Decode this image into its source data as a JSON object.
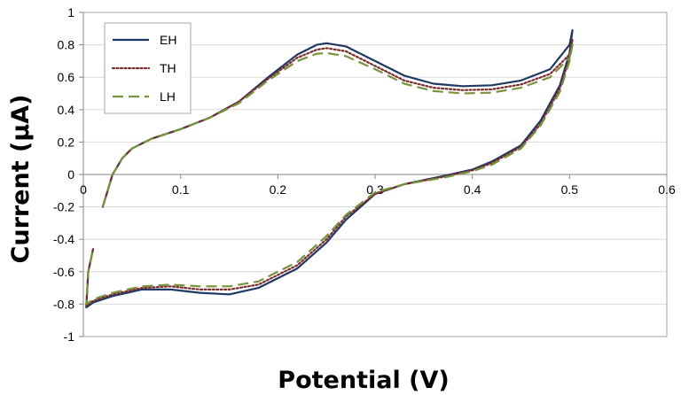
{
  "chart_data": {
    "type": "line",
    "title": "",
    "xlabel": "Potential (V)",
    "ylabel": "Current (µA)",
    "xlim": [
      0,
      0.6
    ],
    "ylim": [
      -1,
      1
    ],
    "x_ticks": [
      "0",
      "0.1",
      "0.2",
      "0.3",
      "0.4",
      "0.5",
      "0.6"
    ],
    "y_ticks": [
      "1",
      "0.8",
      "0.6",
      "0.4",
      "0.2",
      "0",
      "-0.2",
      "-0.4",
      "-0.6",
      "-0.8",
      "-1"
    ],
    "grid": "horizontal",
    "legend_position": "top-left",
    "series": [
      {
        "name": "EH",
        "color": "#1f3864",
        "style": "solid",
        "points": [
          [
            0.02,
            -0.2
          ],
          [
            0.025,
            -0.1
          ],
          [
            0.03,
            0.0
          ],
          [
            0.04,
            0.1
          ],
          [
            0.05,
            0.16
          ],
          [
            0.07,
            0.22
          ],
          [
            0.1,
            0.28
          ],
          [
            0.13,
            0.35
          ],
          [
            0.16,
            0.45
          ],
          [
            0.19,
            0.6
          ],
          [
            0.22,
            0.74
          ],
          [
            0.24,
            0.8
          ],
          [
            0.25,
            0.81
          ],
          [
            0.27,
            0.79
          ],
          [
            0.3,
            0.7
          ],
          [
            0.33,
            0.61
          ],
          [
            0.36,
            0.56
          ],
          [
            0.39,
            0.545
          ],
          [
            0.42,
            0.55
          ],
          [
            0.45,
            0.58
          ],
          [
            0.48,
            0.65
          ],
          [
            0.5,
            0.8
          ],
          [
            0.503,
            0.89
          ],
          [
            0.5,
            0.75
          ],
          [
            0.49,
            0.55
          ],
          [
            0.47,
            0.33
          ],
          [
            0.45,
            0.18
          ],
          [
            0.42,
            0.08
          ],
          [
            0.4,
            0.03
          ],
          [
            0.37,
            -0.01
          ],
          [
            0.33,
            -0.06
          ],
          [
            0.3,
            -0.12
          ],
          [
            0.27,
            -0.28
          ],
          [
            0.25,
            -0.42
          ],
          [
            0.22,
            -0.58
          ],
          [
            0.18,
            -0.7
          ],
          [
            0.15,
            -0.74
          ],
          [
            0.12,
            -0.73
          ],
          [
            0.09,
            -0.71
          ],
          [
            0.06,
            -0.71
          ],
          [
            0.03,
            -0.75
          ],
          [
            0.01,
            -0.79
          ],
          [
            0.003,
            -0.82
          ],
          [
            0.005,
            -0.6
          ],
          [
            0.01,
            -0.46
          ]
        ]
      },
      {
        "name": "TH",
        "color": "#7b2c2c",
        "style": "dotted",
        "points": [
          [
            0.02,
            -0.2
          ],
          [
            0.025,
            -0.1
          ],
          [
            0.03,
            0.0
          ],
          [
            0.04,
            0.1
          ],
          [
            0.05,
            0.16
          ],
          [
            0.07,
            0.22
          ],
          [
            0.1,
            0.28
          ],
          [
            0.13,
            0.35
          ],
          [
            0.16,
            0.45
          ],
          [
            0.19,
            0.59
          ],
          [
            0.22,
            0.72
          ],
          [
            0.24,
            0.77
          ],
          [
            0.25,
            0.78
          ],
          [
            0.27,
            0.76
          ],
          [
            0.3,
            0.67
          ],
          [
            0.33,
            0.58
          ],
          [
            0.36,
            0.535
          ],
          [
            0.39,
            0.52
          ],
          [
            0.42,
            0.525
          ],
          [
            0.45,
            0.555
          ],
          [
            0.48,
            0.62
          ],
          [
            0.5,
            0.74
          ],
          [
            0.503,
            0.83
          ],
          [
            0.5,
            0.72
          ],
          [
            0.49,
            0.53
          ],
          [
            0.47,
            0.31
          ],
          [
            0.45,
            0.17
          ],
          [
            0.42,
            0.07
          ],
          [
            0.4,
            0.025
          ],
          [
            0.37,
            -0.015
          ],
          [
            0.33,
            -0.06
          ],
          [
            0.3,
            -0.12
          ],
          [
            0.27,
            -0.26
          ],
          [
            0.25,
            -0.4
          ],
          [
            0.22,
            -0.56
          ],
          [
            0.18,
            -0.68
          ],
          [
            0.15,
            -0.71
          ],
          [
            0.12,
            -0.71
          ],
          [
            0.09,
            -0.69
          ],
          [
            0.06,
            -0.7
          ],
          [
            0.03,
            -0.74
          ],
          [
            0.01,
            -0.78
          ],
          [
            0.003,
            -0.81
          ],
          [
            0.005,
            -0.6
          ],
          [
            0.01,
            -0.46
          ]
        ]
      },
      {
        "name": "LH",
        "color": "#77933c",
        "style": "dashed",
        "points": [
          [
            0.02,
            -0.2
          ],
          [
            0.025,
            -0.1
          ],
          [
            0.03,
            0.0
          ],
          [
            0.04,
            0.1
          ],
          [
            0.05,
            0.16
          ],
          [
            0.07,
            0.22
          ],
          [
            0.1,
            0.28
          ],
          [
            0.13,
            0.35
          ],
          [
            0.16,
            0.44
          ],
          [
            0.19,
            0.58
          ],
          [
            0.22,
            0.7
          ],
          [
            0.24,
            0.745
          ],
          [
            0.25,
            0.75
          ],
          [
            0.27,
            0.73
          ],
          [
            0.3,
            0.65
          ],
          [
            0.33,
            0.56
          ],
          [
            0.36,
            0.515
          ],
          [
            0.39,
            0.5
          ],
          [
            0.42,
            0.505
          ],
          [
            0.45,
            0.535
          ],
          [
            0.48,
            0.6
          ],
          [
            0.5,
            0.72
          ],
          [
            0.503,
            0.8
          ],
          [
            0.5,
            0.7
          ],
          [
            0.49,
            0.51
          ],
          [
            0.47,
            0.3
          ],
          [
            0.45,
            0.16
          ],
          [
            0.42,
            0.06
          ],
          [
            0.4,
            0.02
          ],
          [
            0.37,
            -0.02
          ],
          [
            0.33,
            -0.06
          ],
          [
            0.3,
            -0.11
          ],
          [
            0.27,
            -0.25
          ],
          [
            0.25,
            -0.38
          ],
          [
            0.22,
            -0.54
          ],
          [
            0.18,
            -0.66
          ],
          [
            0.15,
            -0.69
          ],
          [
            0.12,
            -0.69
          ],
          [
            0.09,
            -0.68
          ],
          [
            0.06,
            -0.69
          ],
          [
            0.03,
            -0.73
          ],
          [
            0.01,
            -0.77
          ],
          [
            0.003,
            -0.8
          ],
          [
            0.005,
            -0.6
          ],
          [
            0.01,
            -0.46
          ]
        ]
      }
    ]
  }
}
